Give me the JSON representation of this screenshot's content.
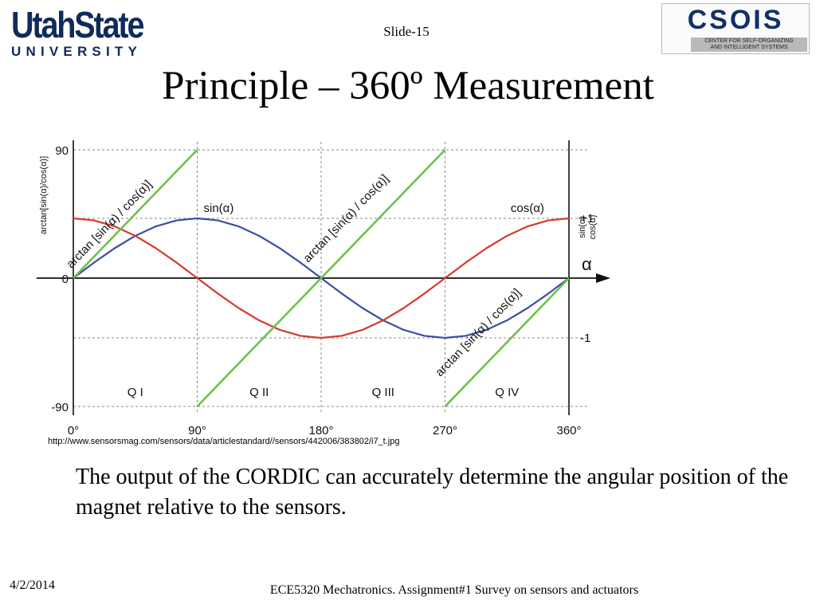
{
  "header": {
    "logo_left": {
      "line1": "UtahState",
      "line2": "UNIVERSITY"
    },
    "slide_number": "Slide-15",
    "logo_right": {
      "name": "CSOIS",
      "subtitle_line1": "CENTER FOR SELF-ORGANIZING",
      "subtitle_line2": "AND INTELLIGENT SYSTEMS"
    }
  },
  "title": "Principle – 360º Measurement",
  "chart_data": {
    "type": "line",
    "x": [
      0,
      15,
      30,
      45,
      60,
      75,
      90,
      105,
      120,
      135,
      150,
      165,
      180,
      195,
      210,
      225,
      240,
      255,
      270,
      285,
      300,
      315,
      330,
      345,
      360
    ],
    "series": [
      {
        "name": "sin(α)",
        "color": "#3b4fa3",
        "values": [
          0,
          0.259,
          0.5,
          0.707,
          0.866,
          0.966,
          1,
          0.966,
          0.866,
          0.707,
          0.5,
          0.259,
          0,
          -0.259,
          -0.5,
          -0.707,
          -0.866,
          -0.966,
          -1,
          -0.966,
          -0.866,
          -0.707,
          -0.5,
          -0.259,
          0
        ]
      },
      {
        "name": "cos(α)",
        "color": "#d63a2f",
        "values": [
          1,
          0.966,
          0.866,
          0.707,
          0.5,
          0.259,
          0,
          -0.259,
          -0.5,
          -0.707,
          -0.866,
          -0.966,
          -1,
          -0.966,
          -0.866,
          -0.707,
          -0.5,
          -0.259,
          0,
          0.259,
          0.5,
          0.707,
          0.866,
          0.966,
          1
        ]
      }
    ],
    "arctan_series": {
      "label": "arctan [sin(α) / cos(α)]",
      "color": "#6cc24a",
      "segments": [
        {
          "x": [
            0,
            90
          ],
          "y": [
            0,
            90
          ]
        },
        {
          "x": [
            90,
            270
          ],
          "y": [
            -90,
            90
          ]
        },
        {
          "x": [
            270,
            360
          ],
          "y": [
            -90,
            0
          ]
        }
      ]
    },
    "x_ticks": [
      "0°",
      "90°",
      "180°",
      "270°",
      "360°"
    ],
    "x_tick_values": [
      0,
      90,
      180,
      270,
      360
    ],
    "xlabel": "α",
    "left_axis": {
      "label": "arctan[sin(α)/cos(α)]",
      "ticks": [
        "90",
        "0",
        "-90"
      ],
      "tick_values": [
        90,
        0,
        -90
      ],
      "range": [
        -90,
        90
      ]
    },
    "right_axis": {
      "label_line1": "sin(α)",
      "label_line2": "cos(α)",
      "ticks": [
        "+1",
        "-1"
      ],
      "tick_values": [
        1,
        -1
      ],
      "range": [
        -1.2,
        1.2
      ]
    },
    "quadrants": [
      "Q I",
      "Q II",
      "Q III",
      "Q IV"
    ],
    "grid": true
  },
  "source_url": "http://www.sensorsmag.com/sensors/data/articlestandard//sensors/442006/383802/i7_t.jpg",
  "body_text": "The output of the CORDIC can accurately determine the angular position of the magnet relative to the sensors.",
  "footer": {
    "date": "4/2/2014",
    "course": "ECE5320 Mechatronics. Assignment#1 Survey on sensors and actuators"
  }
}
